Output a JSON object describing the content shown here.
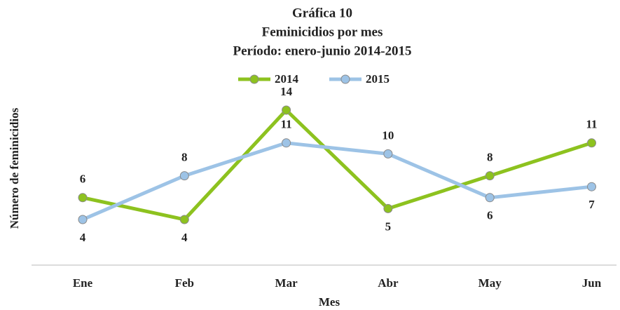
{
  "chart_data": {
    "type": "line",
    "title": [
      "Gráfica 10",
      "Feminicidios por mes",
      "Período: enero-junio 2014-2015"
    ],
    "x_label": "Mes",
    "y_label": "Número de feminicidios",
    "categories": [
      "Ene",
      "Feb",
      "Mar",
      "Abr",
      "May",
      "Jun"
    ],
    "series": [
      {
        "name": "2014",
        "color": "#8dc21f",
        "values": [
          6,
          4,
          14,
          5,
          8,
          11
        ]
      },
      {
        "name": "2015",
        "color": "#9dc3e6",
        "values": [
          4,
          8,
          11,
          10,
          6,
          7
        ]
      }
    ],
    "ylim": [
      0,
      15
    ],
    "legend": "top"
  }
}
